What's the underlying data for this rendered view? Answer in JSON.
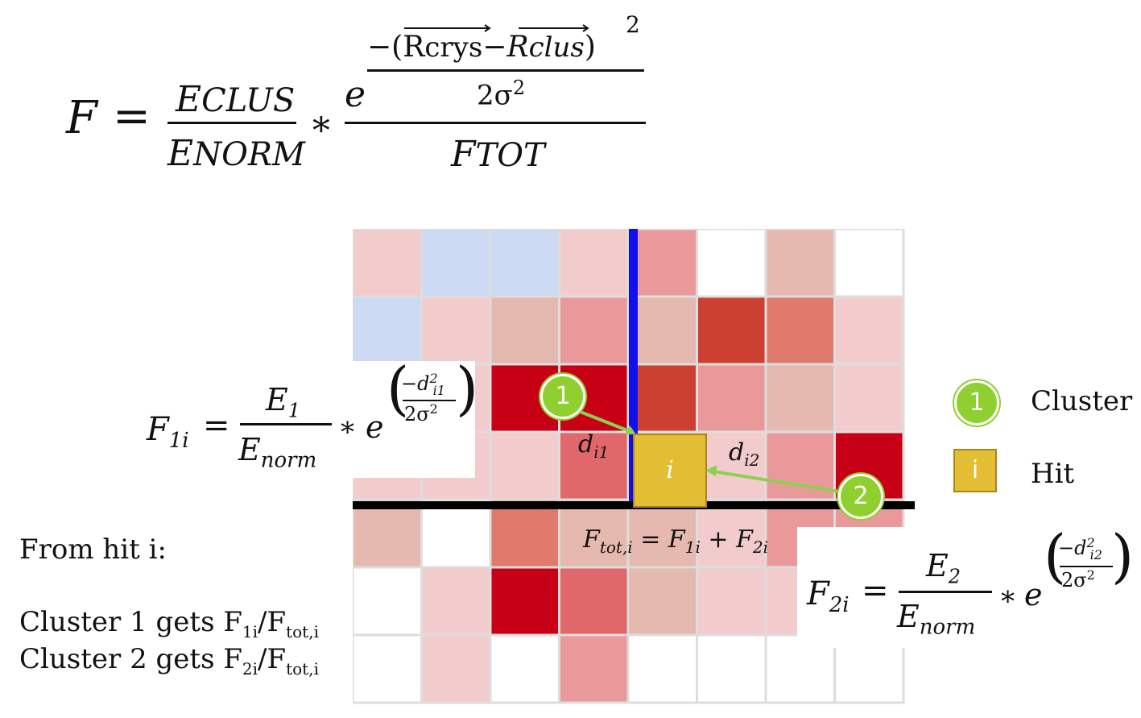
{
  "main_formula": {
    "lhs": "F",
    "equals": "=",
    "e_clus": "E",
    "e_clus_sub": "CLUS",
    "e_norm": "E",
    "e_norm_sub": "NORM",
    "times": "∗",
    "exp_base": "e",
    "exp_numerator": "−(R",
    "exp_crys": "crys",
    "exp_minus": "−R",
    "exp_clus": "clus",
    "exp_paren_close": ")",
    "exp_square": "2",
    "exp_denominator": "2σ",
    "exp_denominator_power": "2",
    "f_tot": "F",
    "f_tot_sub": "TOT"
  },
  "f1_formula": {
    "lhs": "F",
    "lhs_sub": "1i",
    "equals": "=",
    "numerator": "E",
    "numerator_sub": "1",
    "denominator": "E",
    "denominator_sub": "norm",
    "times": "∗",
    "exp_base": "e",
    "exp_num": "−d",
    "exp_num_sub": "i1",
    "exp_num_sup": "2",
    "exp_den": "2σ",
    "exp_den_sup": "2"
  },
  "f2_formula": {
    "lhs": "F",
    "lhs_sub": "2i",
    "equals": "=",
    "numerator": "E",
    "numerator_sub": "2",
    "denominator": "E",
    "denominator_sub": "norm",
    "times": "∗",
    "exp_base": "e",
    "exp_num": "−d",
    "exp_num_sub": "i2",
    "exp_num_sup": "2",
    "exp_den": "2σ",
    "exp_den_sup": "2"
  },
  "grid": {
    "colors": {
      "white": "#ffffff",
      "light_blue": "#ccdaf4",
      "pale_pink": "#f2cccc",
      "tan": "#e5b8b0",
      "pink": "#ea999b",
      "salmon": "#e07a6c",
      "rose": "#e0676a",
      "brick": "#cc4032",
      "red": "#c80015"
    },
    "cells": [
      [
        "pale_pink",
        "light_blue",
        "light_blue",
        "pale_pink",
        "pink",
        "white",
        "tan",
        "white"
      ],
      [
        "light_blue",
        "pale_pink",
        "tan",
        "pink",
        "tan",
        "brick",
        "salmon",
        "pale_pink"
      ],
      [
        "pale_pink",
        "pale_pink",
        "red",
        "red",
        "brick",
        "pink",
        "tan",
        "pale_pink"
      ],
      [
        "pale_pink",
        "pale_pink",
        "pale_pink",
        "rose",
        "pale_pink",
        "pale_pink",
        "pink",
        "red"
      ],
      [
        "tan",
        "white",
        "salmon",
        "tan",
        "tan",
        "pale_pink",
        "pink",
        "pink"
      ],
      [
        "white",
        "pale_pink",
        "red",
        "rose",
        "tan",
        "pale_pink",
        "pale_pink",
        "pale_pink"
      ],
      [
        "white",
        "pale_pink",
        "white",
        "pink",
        "white",
        "white",
        "white",
        "white"
      ]
    ]
  },
  "diagram": {
    "hit_label": "i",
    "cluster1_label": "1",
    "cluster2_label": "2",
    "d_i1": "d",
    "d_i1_sub": "i1",
    "d_i2": "d",
    "d_i2_sub": "i2",
    "f_tot_label": "F",
    "f_tot_sub": "tot,i",
    "f_tot_eq": " = F",
    "f_tot_f1_sub": "1i",
    "f_tot_plus": " + F",
    "f_tot_f2_sub": "2i",
    "line_blue": "#1010ee",
    "line_black": "#000000",
    "arrow_green": "#8fcf4f"
  },
  "legend": {
    "cluster_icon": "1",
    "cluster_label": "Cluster",
    "hit_icon": "i",
    "hit_label": "Hit",
    "cluster_color": "#8fcf2f",
    "hit_color": "#e3bd34"
  },
  "notes": {
    "heading": "From hit i:",
    "line1_prefix": "Cluster 1 gets F",
    "line1_sub1": "1i",
    "line1_slash": "/F",
    "line1_sub2": "tot,i",
    "line2_prefix": "Cluster 2 gets F",
    "line2_sub1": "2i",
    "line2_slash": "/F",
    "line2_sub2": "tot,i"
  }
}
